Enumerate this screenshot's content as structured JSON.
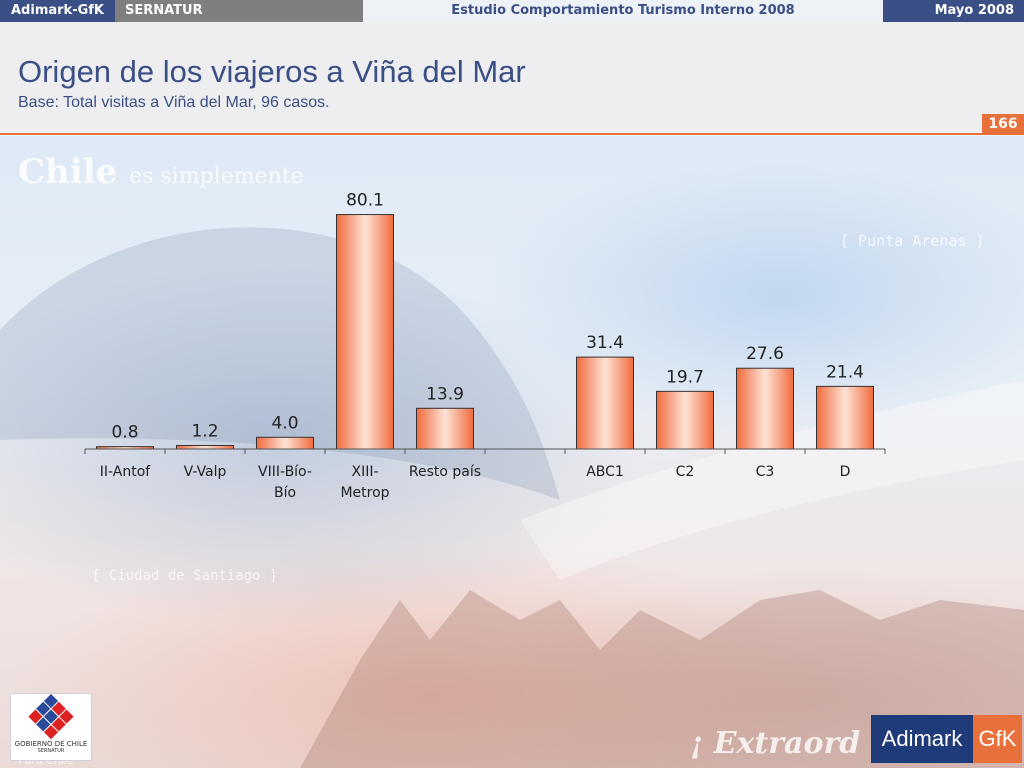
{
  "topbar": {
    "company": "Adimark-GfK",
    "client": "SERNATUR",
    "study": "Estudio Comportamiento Turismo Interno 2008",
    "date": "Mayo 2008"
  },
  "header": {
    "title": "Origen de los viajeros a Viña del Mar",
    "subtitle": "Base: Total visitas a Viña del Mar, 96 casos.",
    "page_number": "166"
  },
  "background_text": {
    "slogan_main": "Chile",
    "slogan_rest": "es simplemente",
    "place_1": "[ Punta Arenas ]",
    "place_2": "[ Ciudad de Santiago ]",
    "tagline": "¡ Extraord",
    "bottom_left": "Puro Chile"
  },
  "logos": {
    "gobierno_line1": "GOBIERNO DE CHILE",
    "gobierno_line2": "SERNATUR",
    "adimark": "Adimark",
    "gfk": "GfK"
  },
  "colors": {
    "brand_blue": "#3a4f85",
    "accent_orange": "#e8703a",
    "bar_fill_edge": "#f06a3c",
    "bar_fill_center": "#fde3d6"
  },
  "chart_data": {
    "type": "bar",
    "categories": [
      [
        "II-Antof"
      ],
      [
        "V-Valp"
      ],
      [
        "VIII-Bío-",
        "Bío"
      ],
      [
        "XIII-",
        "Metrop"
      ],
      [
        "Resto país"
      ],
      [
        ""
      ],
      [
        "ABC1"
      ],
      [
        "C2"
      ],
      [
        "C3"
      ],
      [
        "D"
      ]
    ],
    "values": [
      0.8,
      1.2,
      4.0,
      80.1,
      13.9,
      null,
      31.4,
      19.7,
      27.6,
      21.4
    ],
    "value_labels": [
      "0.8",
      "1.2",
      "4.0",
      "80.1",
      "13.9",
      "",
      "31.4",
      "19.7",
      "27.6",
      "21.4"
    ],
    "ylim": [
      0,
      82
    ],
    "grid": false
  }
}
